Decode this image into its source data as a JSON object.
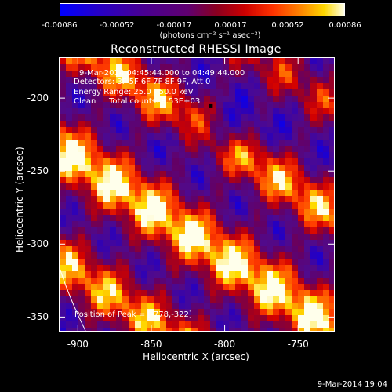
{
  "colorbar": {
    "ticks": [
      "-0.00086",
      "-0.00052",
      "-0.00017",
      "0.00017",
      "0.00052",
      "0.00086"
    ],
    "units": "(photons cm⁻² s⁻¹ asec⁻²)",
    "colors": [
      "#0000ff",
      "#4a0090",
      "#600070",
      "#cc0000",
      "#ff8800",
      "#ffffe8"
    ]
  },
  "chart_data": {
    "type": "heatmap",
    "title": "Reconstructed RHESSI Image",
    "xlabel": "Heliocentric X (arcsec)",
    "ylabel": "Heliocentric Y (arcsec)",
    "xlim": [
      -913,
      -725
    ],
    "ylim": [
      -360,
      -172
    ],
    "x_ticks": [
      -900,
      -850,
      -800,
      -750
    ],
    "y_ticks": [
      -200,
      -250,
      -300,
      -350
    ],
    "x_tick_labels": [
      "-900",
      "-850",
      "-800",
      "-750"
    ],
    "y_tick_labels": [
      "-200",
      "-250",
      "-300",
      "-350"
    ],
    "zlim": [
      -0.00086,
      0.00086
    ],
    "peak_position": [
      -778,
      -322
    ],
    "marker_position": [
      -810,
      -205
    ],
    "annotations": {
      "time": "9-Mar-2014 04:45:44.000 to 04:49:44.000",
      "detectors": "Detectors: 3F 5F 6F 7F 8F 9F, Att 0",
      "energy": "Energy Range: 25.0 - 50.0 keV",
      "method": "Clean",
      "counts": "Total counts: 8.53E+03",
      "peak": "Position of Peak = [-778,-322]"
    }
  },
  "footer": "9-Mar-2014 19:04"
}
